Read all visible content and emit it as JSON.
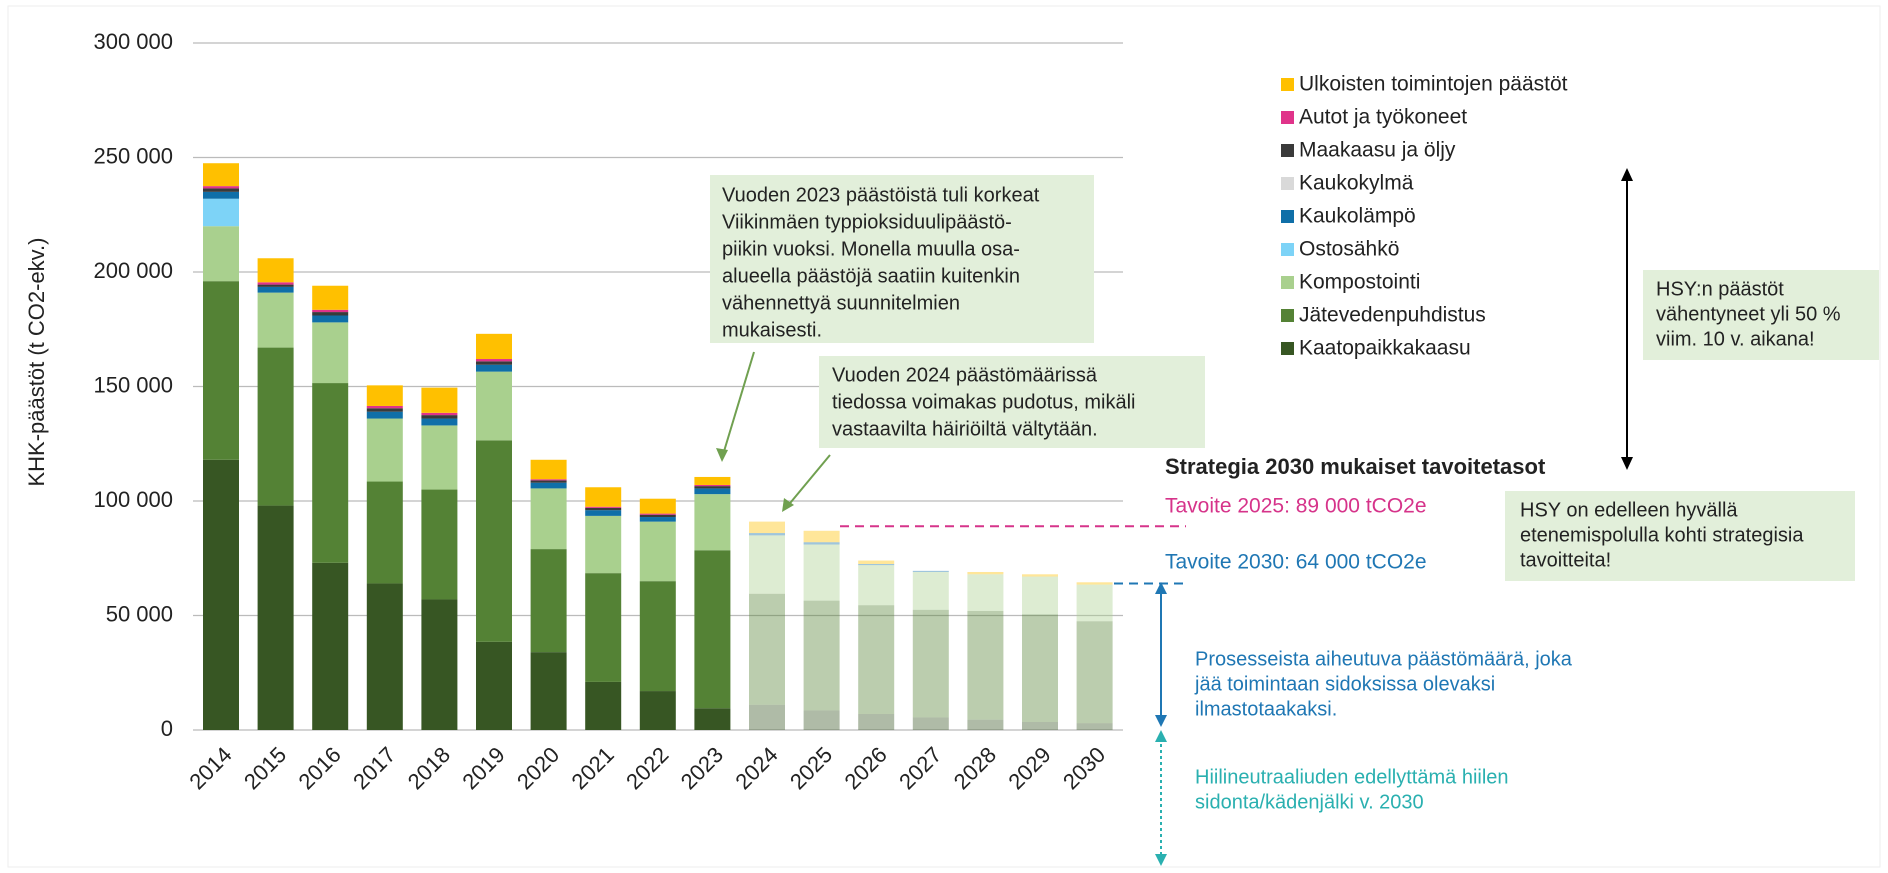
{
  "chart_data": {
    "type": "stacked_bar",
    "y_axis_label": "KHK-päästöt (t CO2-ekv.)",
    "categories": [
      "2014",
      "2015",
      "2016",
      "2017",
      "2018",
      "2019",
      "2020",
      "2021",
      "2022",
      "2023",
      "2024",
      "2025",
      "2026",
      "2027",
      "2028",
      "2029",
      "2030"
    ],
    "series": [
      {
        "name": "Kaatopaikkakaasu",
        "color": "#375623",
        "values": [
          118000,
          98000,
          73000,
          64000,
          57000,
          38500,
          34000,
          21000,
          17000,
          9500,
          11000,
          8500,
          7000,
          5500,
          4500,
          3500,
          3000
        ]
      },
      {
        "name": "Jätevedenpuhdistus",
        "color": "#548235",
        "values": [
          78000,
          69000,
          78500,
          44500,
          48000,
          88000,
          45000,
          47500,
          48000,
          69000,
          48500,
          48000,
          47500,
          47000,
          47500,
          47000,
          44500
        ]
      },
      {
        "name": "Kompostointi",
        "color": "#a9d08e",
        "values": [
          24000,
          24000,
          26500,
          27500,
          28000,
          30000,
          26500,
          25000,
          26000,
          24500,
          25500,
          24500,
          17500,
          16500,
          16000,
          16500,
          16000
        ]
      },
      {
        "name": "Ostosähkö",
        "color": "#7dd3f7",
        "values": [
          12000,
          0,
          0,
          0,
          0,
          0,
          0,
          0,
          0,
          0,
          0,
          0,
          0,
          0,
          0,
          0,
          0
        ]
      },
      {
        "name": "Kaukolämpö",
        "color": "#0f6fa8",
        "values": [
          3000,
          2500,
          3000,
          3000,
          3000,
          3000,
          2500,
          2500,
          2000,
          2500,
          1000,
          1000,
          500,
          500,
          0,
          0,
          0
        ]
      },
      {
        "name": "Kaukokylmä",
        "color": "#d9d9d9",
        "values": [
          0,
          0,
          0,
          0,
          0,
          0,
          0,
          0,
          0,
          0,
          0,
          0,
          0,
          0,
          0,
          0,
          0
        ]
      },
      {
        "name": "Maakaasu ja öljy",
        "color": "#3a3a3a",
        "values": [
          1500,
          1000,
          1500,
          1500,
          1500,
          1500,
          1000,
          1000,
          1000,
          1000,
          0,
          0,
          0,
          0,
          0,
          0,
          0
        ]
      },
      {
        "name": "Autot ja työkoneet",
        "color": "#e0338a",
        "values": [
          1000,
          1000,
          1000,
          1000,
          1000,
          1000,
          500,
          500,
          500,
          500,
          0,
          0,
          0,
          0,
          0,
          0,
          0
        ]
      },
      {
        "name": "Ulkoisten toimintojen päästöt",
        "color": "#ffc000",
        "values": [
          10000,
          10500,
          10500,
          9000,
          11000,
          11000,
          8500,
          8500,
          6500,
          3500,
          5000,
          5000,
          1500,
          0,
          1000,
          1000,
          1000
        ]
      }
    ],
    "ylim": [
      0,
      300000
    ],
    "yticks": [
      0,
      {
        "value": 50000,
        "label": "50 000"
      },
      {
        "value": 100000,
        "label": "100 000"
      },
      {
        "value": 150000,
        "label": "150 000"
      },
      {
        "value": 200000,
        "label": "200 000"
      },
      {
        "value": 250000,
        "label": "250 000"
      },
      {
        "value": 300000,
        "label": "300 000"
      }
    ],
    "grid": true,
    "legend_position": "right",
    "targets_title": "Strategia 2030 mukaiset tavoitetasot",
    "targets": [
      {
        "label": "Tavoite 2025: 89 000 tCO2e",
        "value": 89000,
        "color": "#d6338a"
      },
      {
        "label": "Tavoite 2030: 64 000 tCO2e",
        "value": 64000,
        "color": "#1f77b4"
      }
    ],
    "annotations": {
      "note_2023": [
        "Vuoden 2023 päästöistä tuli korkeat",
        "Viikinmäen typpioksiduulipäästö-",
        "piikin vuoksi. Monella muulla osa-",
        "alueella päästöjä saatiin kuitenkin",
        "vähennettyä suunnitelmien",
        "mukaisesti."
      ],
      "note_2024": [
        "Vuoden 2024 päästömäärissä",
        "tiedossa voimakas pudotus, mikäli",
        "vastaavilta häiriöiltä vältytään."
      ],
      "hsy_reduction": [
        "HSY:n päästöt",
        "vähentyneet yli 50 %",
        "viim. 10 v. aikana!"
      ],
      "hsy_path": [
        "HSY on edelleen hyvällä",
        "etenemispolulla kohti strategisia",
        "tavoitteita!"
      ],
      "process": [
        "Prosesseista aiheutuva päästömäärä, joka",
        "jää toimintaan sidoksissa olevaksi",
        "ilmastotaakaksi."
      ],
      "sequestration": [
        "Hiilineutraaliuden edellyttämä hiilen",
        "sidonta/kädenjälki v. 2030"
      ]
    }
  }
}
